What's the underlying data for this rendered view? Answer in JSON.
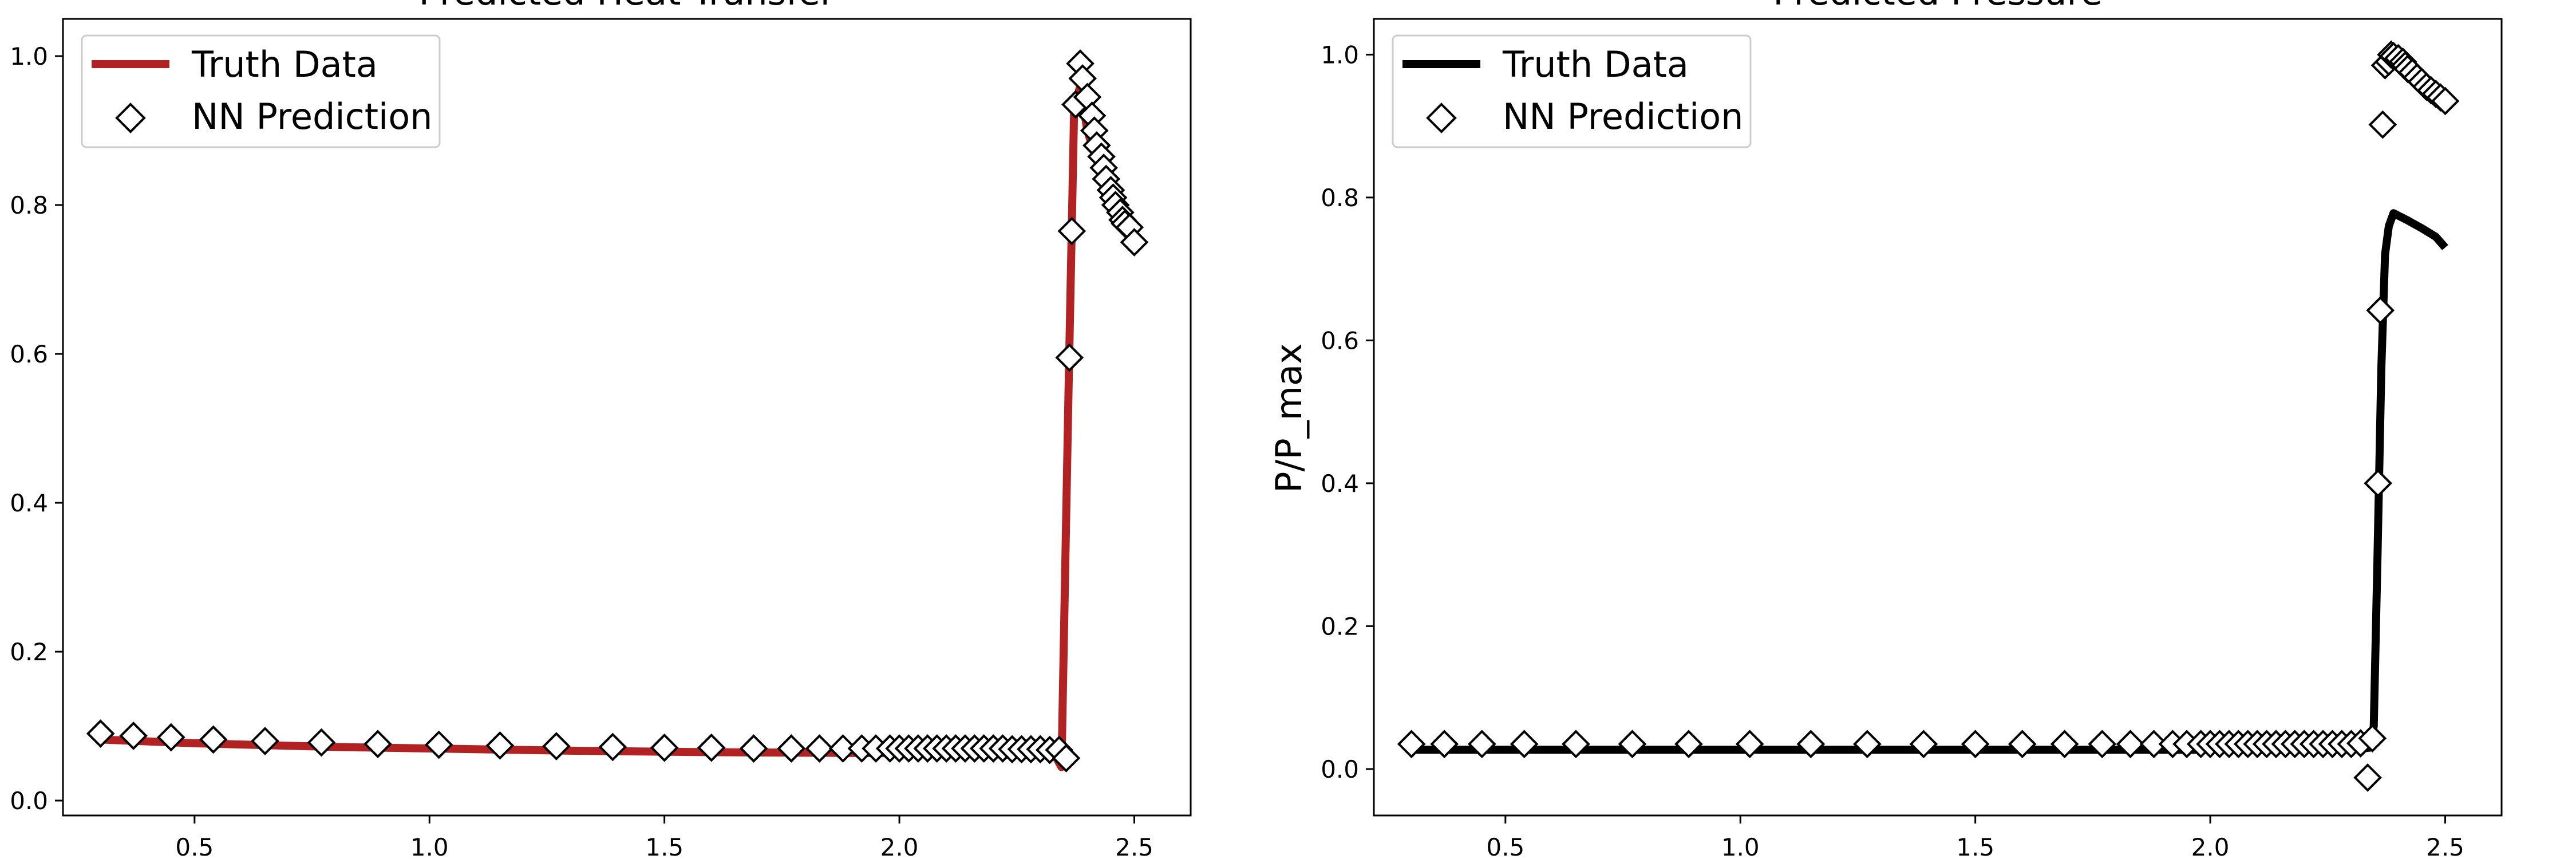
{
  "chart_data": [
    {
      "type": "line",
      "title": "Predicted Heat Transfer",
      "xlabel": "",
      "ylabel": "",
      "xlim": [
        0.22,
        2.62
      ],
      "ylim": [
        -0.02,
        1.05
      ],
      "x_ticks": [
        "0.5",
        "1.0",
        "1.5",
        "2.0",
        "2.5"
      ],
      "y_ticks": [
        "0.0",
        "0.2",
        "0.4",
        "0.6",
        "0.8",
        "1.0"
      ],
      "grid": false,
      "legend_position": "upper-left",
      "series": [
        {
          "name": "Truth Data",
          "style": "line",
          "color": "#b22222",
          "points": [
            [
              0.3,
              0.082
            ],
            [
              0.5,
              0.077
            ],
            [
              0.8,
              0.072
            ],
            [
              1.0,
              0.07
            ],
            [
              1.3,
              0.067
            ],
            [
              1.6,
              0.065
            ],
            [
              1.9,
              0.064
            ],
            [
              2.2,
              0.063
            ],
            [
              2.33,
              0.062
            ],
            [
              2.345,
              0.045
            ],
            [
              2.36,
              0.55
            ],
            [
              2.372,
              0.93
            ],
            [
              2.385,
              0.96
            ],
            [
              2.4,
              0.9
            ],
            [
              2.43,
              0.84
            ],
            [
              2.46,
              0.8
            ],
            [
              2.5,
              0.76
            ]
          ]
        },
        {
          "name": "NN Prediction",
          "style": "marker",
          "marker": "diamond",
          "color": "#000000",
          "points": [
            [
              0.3,
              0.09
            ],
            [
              0.37,
              0.087
            ],
            [
              0.45,
              0.085
            ],
            [
              0.54,
              0.082
            ],
            [
              0.65,
              0.08
            ],
            [
              0.77,
              0.078
            ],
            [
              0.89,
              0.076
            ],
            [
              1.02,
              0.075
            ],
            [
              1.15,
              0.074
            ],
            [
              1.27,
              0.073
            ],
            [
              1.39,
              0.072
            ],
            [
              1.5,
              0.071
            ],
            [
              1.6,
              0.071
            ],
            [
              1.69,
              0.07
            ],
            [
              1.77,
              0.07
            ],
            [
              1.83,
              0.07
            ],
            [
              1.88,
              0.07
            ],
            [
              1.92,
              0.07
            ],
            [
              1.95,
              0.07
            ],
            [
              1.98,
              0.07
            ],
            [
              2.0,
              0.07
            ],
            [
              2.02,
              0.07
            ],
            [
              2.04,
              0.07
            ],
            [
              2.06,
              0.07
            ],
            [
              2.08,
              0.07
            ],
            [
              2.1,
              0.07
            ],
            [
              2.12,
              0.07
            ],
            [
              2.14,
              0.07
            ],
            [
              2.16,
              0.07
            ],
            [
              2.18,
              0.07
            ],
            [
              2.2,
              0.07
            ],
            [
              2.22,
              0.07
            ],
            [
              2.24,
              0.069
            ],
            [
              2.26,
              0.069
            ],
            [
              2.28,
              0.069
            ],
            [
              2.3,
              0.069
            ],
            [
              2.32,
              0.068
            ],
            [
              2.34,
              0.068
            ],
            [
              2.355,
              0.057
            ],
            [
              2.362,
              0.595
            ],
            [
              2.367,
              0.765
            ],
            [
              2.375,
              0.935
            ],
            [
              2.385,
              0.99
            ],
            [
              2.39,
              0.97
            ],
            [
              2.4,
              0.945
            ],
            [
              2.41,
              0.92
            ],
            [
              2.415,
              0.9
            ],
            [
              2.42,
              0.88
            ],
            [
              2.43,
              0.865
            ],
            [
              2.435,
              0.85
            ],
            [
              2.44,
              0.835
            ],
            [
              2.45,
              0.82
            ],
            [
              2.455,
              0.81
            ],
            [
              2.46,
              0.8
            ],
            [
              2.47,
              0.79
            ],
            [
              2.475,
              0.78
            ],
            [
              2.48,
              0.775
            ],
            [
              2.49,
              0.77
            ],
            [
              2.5,
              0.75
            ]
          ]
        }
      ]
    },
    {
      "type": "line",
      "title": "Predicted Pressure",
      "xlabel": "",
      "ylabel": "P/P_max",
      "xlim": [
        0.22,
        2.62
      ],
      "ylim": [
        -0.065,
        1.05
      ],
      "x_ticks": [
        "0.5",
        "1.0",
        "1.5",
        "2.0",
        "2.5"
      ],
      "y_ticks": [
        "0.0",
        "0.2",
        "0.4",
        "0.6",
        "0.8",
        "1.0"
      ],
      "grid": false,
      "legend_position": "upper-left",
      "series": [
        {
          "name": "Truth Data",
          "style": "line",
          "color": "#000000",
          "points": [
            [
              0.3,
              0.027
            ],
            [
              0.8,
              0.027
            ],
            [
              1.3,
              0.027
            ],
            [
              1.8,
              0.027
            ],
            [
              2.3,
              0.027
            ],
            [
              2.34,
              0.03
            ],
            [
              2.348,
              0.06
            ],
            [
              2.356,
              0.3
            ],
            [
              2.364,
              0.56
            ],
            [
              2.372,
              0.72
            ],
            [
              2.38,
              0.76
            ],
            [
              2.39,
              0.778
            ],
            [
              2.42,
              0.768
            ],
            [
              2.45,
              0.757
            ],
            [
              2.48,
              0.745
            ],
            [
              2.5,
              0.73
            ]
          ]
        },
        {
          "name": "NN Prediction",
          "style": "marker",
          "marker": "diamond",
          "color": "#000000",
          "points": [
            [
              0.3,
              0.035
            ],
            [
              0.37,
              0.035
            ],
            [
              0.45,
              0.035
            ],
            [
              0.54,
              0.035
            ],
            [
              0.65,
              0.035
            ],
            [
              0.77,
              0.035
            ],
            [
              0.89,
              0.035
            ],
            [
              1.02,
              0.035
            ],
            [
              1.15,
              0.035
            ],
            [
              1.27,
              0.035
            ],
            [
              1.39,
              0.035
            ],
            [
              1.5,
              0.035
            ],
            [
              1.6,
              0.035
            ],
            [
              1.69,
              0.035
            ],
            [
              1.77,
              0.035
            ],
            [
              1.83,
              0.035
            ],
            [
              1.88,
              0.035
            ],
            [
              1.92,
              0.035
            ],
            [
              1.95,
              0.035
            ],
            [
              1.98,
              0.035
            ],
            [
              2.0,
              0.035
            ],
            [
              2.02,
              0.035
            ],
            [
              2.04,
              0.035
            ],
            [
              2.06,
              0.035
            ],
            [
              2.08,
              0.035
            ],
            [
              2.1,
              0.035
            ],
            [
              2.12,
              0.035
            ],
            [
              2.14,
              0.035
            ],
            [
              2.16,
              0.035
            ],
            [
              2.18,
              0.035
            ],
            [
              2.2,
              0.035
            ],
            [
              2.22,
              0.035
            ],
            [
              2.24,
              0.035
            ],
            [
              2.26,
              0.035
            ],
            [
              2.28,
              0.035
            ],
            [
              2.3,
              0.035
            ],
            [
              2.32,
              0.036
            ],
            [
              2.335,
              -0.012
            ],
            [
              2.345,
              0.043
            ],
            [
              2.357,
              0.4
            ],
            [
              2.362,
              0.642
            ],
            [
              2.367,
              0.902
            ],
            [
              2.372,
              0.985
            ],
            [
              2.38,
              0.99
            ],
            [
              2.385,
              1.0
            ],
            [
              2.39,
              0.998
            ],
            [
              2.4,
              0.995
            ],
            [
              2.41,
              0.99
            ],
            [
              2.415,
              0.985
            ],
            [
              2.42,
              0.98
            ],
            [
              2.43,
              0.975
            ],
            [
              2.44,
              0.968
            ],
            [
              2.45,
              0.962
            ],
            [
              2.46,
              0.955
            ],
            [
              2.47,
              0.95
            ],
            [
              2.48,
              0.945
            ],
            [
              2.49,
              0.94
            ],
            [
              2.5,
              0.935
            ]
          ]
        }
      ]
    }
  ]
}
